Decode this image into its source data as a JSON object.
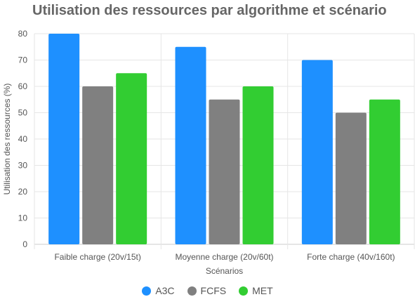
{
  "chart_data": {
    "type": "bar",
    "title": "Utilisation des ressources par algorithme et scénario",
    "xlabel": "Scénarios",
    "ylabel": "Utilisation des ressources (%)",
    "ylim": [
      0,
      80
    ],
    "yticks": [
      "0",
      "10",
      "20",
      "30",
      "40",
      "50",
      "60",
      "70",
      "80"
    ],
    "categories": [
      "Faible charge (20v/15t)",
      "Moyenne charge (20v/60t)",
      "Forte charge (40v/160t)"
    ],
    "series": [
      {
        "name": "A3C",
        "color": "#1e90ff",
        "values": [
          80,
          75,
          70
        ]
      },
      {
        "name": "FCFS",
        "color": "#808080",
        "values": [
          60,
          55,
          50
        ]
      },
      {
        "name": "MET",
        "color": "#32cd32",
        "values": [
          65,
          60,
          55
        ]
      }
    ],
    "grid": true,
    "legend_position": "bottom"
  }
}
